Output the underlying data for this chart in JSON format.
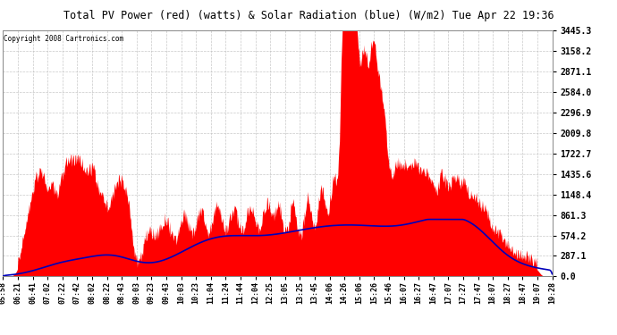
{
  "title": "Total PV Power (red) (watts) & Solar Radiation (blue) (W/m2) Tue Apr 22 19:36",
  "copyright_text": "Copyright 2008 Cartronics.com",
  "y_max": 3445.3,
  "y_ticks": [
    0.0,
    287.1,
    574.2,
    861.3,
    1148.4,
    1435.6,
    1722.7,
    2009.8,
    2296.9,
    2584.0,
    2871.1,
    3158.2,
    3445.3
  ],
  "x_labels": [
    "05:58",
    "06:21",
    "06:41",
    "07:02",
    "07:22",
    "07:42",
    "08:02",
    "08:22",
    "08:43",
    "09:03",
    "09:23",
    "09:43",
    "10:03",
    "10:23",
    "11:04",
    "11:24",
    "11:44",
    "12:04",
    "12:25",
    "13:05",
    "13:25",
    "13:45",
    "14:06",
    "14:26",
    "15:06",
    "15:26",
    "15:46",
    "16:07",
    "16:27",
    "16:47",
    "17:07",
    "17:27",
    "17:47",
    "18:07",
    "18:27",
    "18:47",
    "19:07",
    "19:28"
  ],
  "bg_color": "#ffffff",
  "plot_bg_color": "#ffffff",
  "grid_color": "#bbbbbb",
  "red_color": "#ff0000",
  "blue_color": "#0000bb",
  "title_bg": "#c8c8c8"
}
